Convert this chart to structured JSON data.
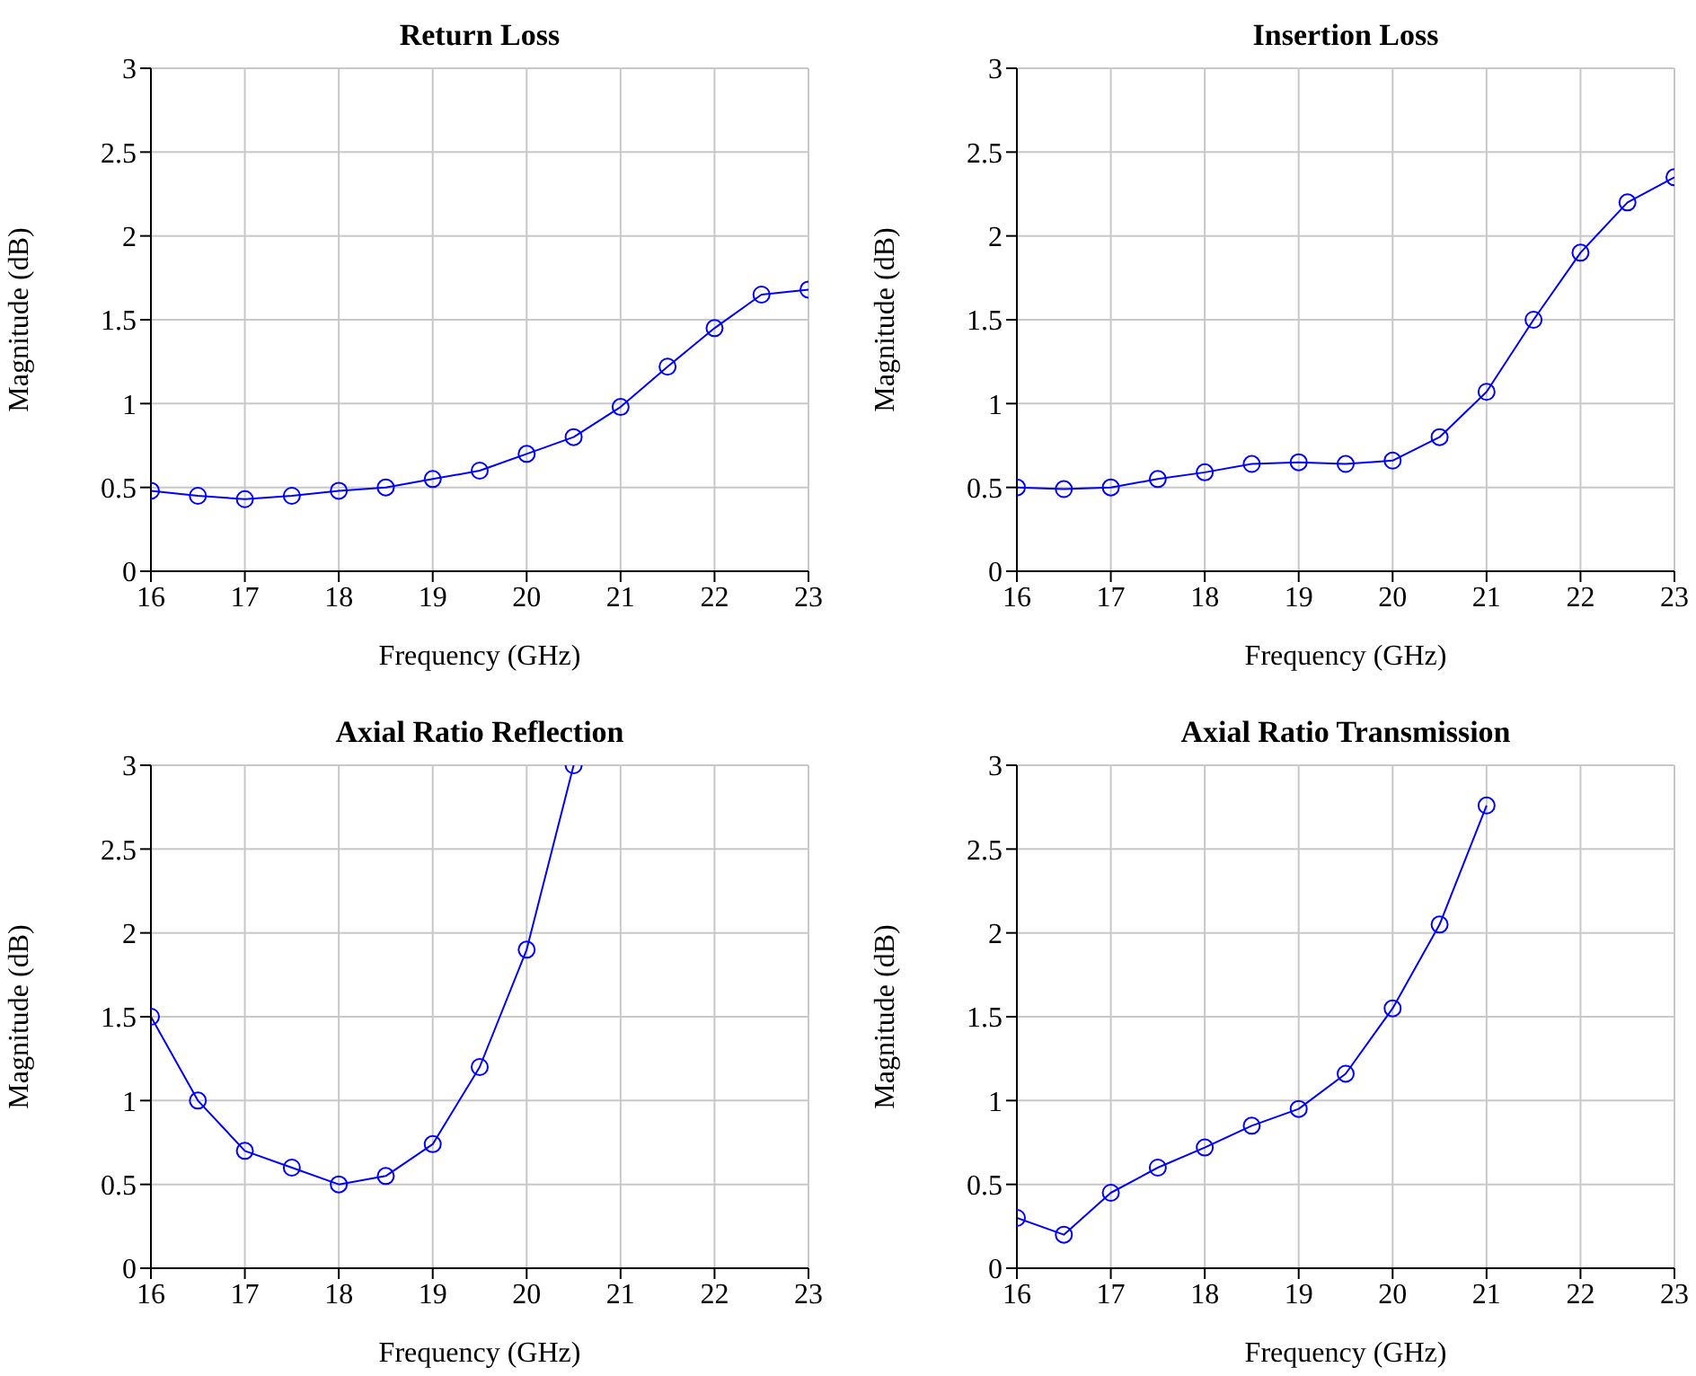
{
  "chart_data": [
    {
      "type": "line",
      "title": "Return Loss",
      "xlabel": "Frequency (GHz)",
      "ylabel": "Magnitude (dB)",
      "x": [
        16,
        16.5,
        17,
        17.5,
        18,
        18.5,
        19,
        19.5,
        20,
        20.5,
        21,
        21.5,
        22,
        22.5,
        23
      ],
      "series": [
        {
          "color": "#0000ff",
          "values": [
            0.48,
            0.45,
            0.43,
            0.45,
            0.48,
            0.5,
            0.55,
            0.6,
            0.7,
            0.8,
            0.98,
            1.22,
            1.45,
            1.65,
            1.68
          ]
        }
      ],
      "xlim": [
        16,
        23
      ],
      "xticks": [
        16,
        17,
        18,
        19,
        20,
        21,
        22,
        23
      ],
      "ylim": [
        0,
        3
      ],
      "yticks": [
        0,
        0.5,
        1,
        1.5,
        2,
        2.5,
        3
      ],
      "grid": true,
      "marker": "circle",
      "line_style": "solid"
    },
    {
      "type": "line",
      "title": "Insertion Loss",
      "xlabel": "Frequency (GHz)",
      "ylabel": "Magnitude (dB)",
      "x": [
        16,
        16.5,
        17,
        17.5,
        18,
        18.5,
        19,
        19.5,
        20,
        20.5,
        21,
        21.5,
        22,
        22.5,
        23
      ],
      "series": [
        {
          "color": "#0000ff",
          "values": [
            0.5,
            0.49,
            0.5,
            0.55,
            0.59,
            0.64,
            0.65,
            0.64,
            0.66,
            0.8,
            1.07,
            1.5,
            1.9,
            2.2,
            2.35
          ]
        }
      ],
      "xlim": [
        16,
        23
      ],
      "xticks": [
        16,
        17,
        18,
        19,
        20,
        21,
        22,
        23
      ],
      "ylim": [
        0,
        3
      ],
      "yticks": [
        0,
        0.5,
        1,
        1.5,
        2,
        2.5,
        3
      ],
      "grid": true,
      "marker": "circle",
      "line_style": "solid"
    },
    {
      "type": "line",
      "title": "Axial Ratio Reflection",
      "xlabel": "Frequency (GHz)",
      "ylabel": "Magnitude (dB)",
      "x": [
        16,
        16.5,
        17,
        17.5,
        18,
        18.5,
        19,
        19.5,
        20,
        20.5
      ],
      "series": [
        {
          "color": "#0000ff",
          "values": [
            1.5,
            1.0,
            0.7,
            0.6,
            0.5,
            0.55,
            0.74,
            1.2,
            1.9,
            3.0
          ]
        }
      ],
      "xlim": [
        16,
        23
      ],
      "xticks": [
        16,
        17,
        18,
        19,
        20,
        21,
        22,
        23
      ],
      "ylim": [
        0,
        3
      ],
      "yticks": [
        0,
        0.5,
        1,
        1.5,
        2,
        2.5,
        3
      ],
      "grid": true,
      "marker": "circle",
      "line_style": "solid"
    },
    {
      "type": "line",
      "title": "Axial Ratio Transmission",
      "xlabel": "Frequency (GHz)",
      "ylabel": "Magnitude (dB)",
      "x": [
        16,
        16.5,
        17,
        17.5,
        18,
        18.5,
        19,
        19.5,
        20,
        20.5,
        21
      ],
      "series": [
        {
          "color": "#0000ff",
          "values": [
            0.3,
            0.2,
            0.45,
            0.6,
            0.72,
            0.85,
            0.95,
            1.16,
            1.55,
            2.05,
            2.76
          ]
        }
      ],
      "xlim": [
        16,
        23
      ],
      "xticks": [
        16,
        17,
        18,
        19,
        20,
        21,
        22,
        23
      ],
      "ylim": [
        0,
        3
      ],
      "yticks": [
        0,
        0.5,
        1,
        1.5,
        2,
        2.5,
        3
      ],
      "grid": true,
      "marker": "circle",
      "line_style": "solid"
    }
  ]
}
